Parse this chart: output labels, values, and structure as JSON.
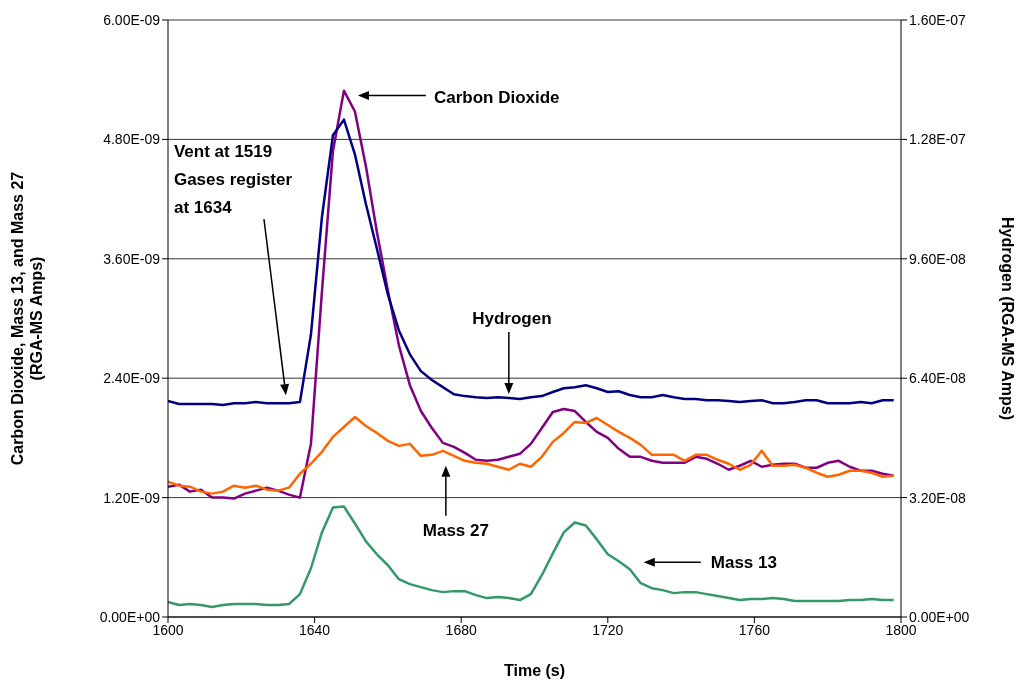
{
  "chart_data": {
    "type": "line",
    "xlabel": "Time (s)",
    "ylabel": "Carbon Dioxide, Mass 13, and Mass 27 (RGA-MS Amps)",
    "y2label": "Hydrogen (RGA-MS Amps)",
    "x": [
      1600,
      1603,
      1606,
      1609,
      1612,
      1615,
      1618,
      1621,
      1624,
      1627,
      1630,
      1633,
      1636,
      1639,
      1642,
      1645,
      1648,
      1651,
      1654,
      1657,
      1660,
      1663,
      1666,
      1669,
      1672,
      1675,
      1678,
      1681,
      1684,
      1687,
      1690,
      1693,
      1696,
      1699,
      1702,
      1705,
      1708,
      1711,
      1714,
      1717,
      1720,
      1723,
      1726,
      1729,
      1732,
      1735,
      1738,
      1741,
      1744,
      1747,
      1750,
      1753,
      1756,
      1759,
      1762,
      1765,
      1768,
      1771,
      1774,
      1777,
      1780,
      1783,
      1786,
      1789,
      1792,
      1795,
      1798
    ],
    "series": [
      {
        "color": "#800080",
        "values": [
          1.31e-09,
          1.33e-09,
          1.26e-09,
          1.28e-09,
          1.2e-09,
          1.2e-09,
          1.19e-09,
          1.24e-09,
          1.27e-09,
          1.3e-09,
          1.27e-09,
          1.23e-09,
          1.2e-09,
          1.74e-09,
          3.27e-09,
          4.68e-09,
          5.29e-09,
          5.08e-09,
          4.53e-09,
          3.87e-09,
          3.28e-09,
          2.73e-09,
          2.33e-09,
          2.07e-09,
          1.9e-09,
          1.75e-09,
          1.71e-09,
          1.65e-09,
          1.58e-09,
          1.57e-09,
          1.58e-09,
          1.61e-09,
          1.64e-09,
          1.74e-09,
          1.9e-09,
          2.06e-09,
          2.09e-09,
          2.07e-09,
          1.96e-09,
          1.86e-09,
          1.8e-09,
          1.69e-09,
          1.61e-09,
          1.61e-09,
          1.57e-09,
          1.55e-09,
          1.55e-09,
          1.55e-09,
          1.61e-09,
          1.59e-09,
          1.54e-09,
          1.48e-09,
          1.52e-09,
          1.57e-09,
          1.51e-09,
          1.53e-09,
          1.54e-09,
          1.54e-09,
          1.5e-09,
          1.5e-09,
          1.55e-09,
          1.57e-09,
          1.51e-09,
          1.47e-09,
          1.47e-09,
          1.44e-09,
          1.42e-09
        ]
      },
      {
        "color": "#ff6600",
        "values": [
          1.36e-09,
          1.32e-09,
          1.31e-09,
          1.26e-09,
          1.24e-09,
          1.26e-09,
          1.32e-09,
          1.3e-09,
          1.32e-09,
          1.28e-09,
          1.27e-09,
          1.3e-09,
          1.44e-09,
          1.54e-09,
          1.66e-09,
          1.81e-09,
          1.91e-09,
          2.01e-09,
          1.92e-09,
          1.85e-09,
          1.77e-09,
          1.72e-09,
          1.74e-09,
          1.62e-09,
          1.63e-09,
          1.67e-09,
          1.62e-09,
          1.57e-09,
          1.55e-09,
          1.54e-09,
          1.51e-09,
          1.48e-09,
          1.54e-09,
          1.51e-09,
          1.61e-09,
          1.76e-09,
          1.85e-09,
          1.96e-09,
          1.95e-09,
          2e-09,
          1.93e-09,
          1.86e-09,
          1.8e-09,
          1.73e-09,
          1.63e-09,
          1.63e-09,
          1.63e-09,
          1.57e-09,
          1.63e-09,
          1.63e-09,
          1.58e-09,
          1.54e-09,
          1.48e-09,
          1.53e-09,
          1.67e-09,
          1.52e-09,
          1.52e-09,
          1.53e-09,
          1.5e-09,
          1.45e-09,
          1.41e-09,
          1.43e-09,
          1.47e-09,
          1.47e-09,
          1.45e-09,
          1.41e-09,
          1.42e-09
        ]
      },
      {
        "color": "#339966",
        "values": [
          1.5e-10,
          1.2e-10,
          1.3e-10,
          1.2e-10,
          1e-10,
          1.2e-10,
          1.3e-10,
          1.3e-10,
          1.3e-10,
          1.2e-10,
          1.2e-10,
          1.3e-10,
          2.3e-10,
          4.9e-10,
          8.5e-10,
          1.1e-09,
          1.11e-09,
          9.4e-10,
          7.6e-10,
          6.3e-10,
          5.2e-10,
          3.8e-10,
          3.3e-10,
          3e-10,
          2.7e-10,
          2.5e-10,
          2.6e-10,
          2.6e-10,
          2.2e-10,
          1.9e-10,
          2e-10,
          1.9e-10,
          1.7e-10,
          2.3e-10,
          4.2e-10,
          6.4e-10,
          8.5e-10,
          9.5e-10,
          9.2e-10,
          7.8e-10,
          6.3e-10,
          5.6e-10,
          4.8e-10,
          3.4e-10,
          2.9e-10,
          2.7e-10,
          2.4e-10,
          2.5e-10,
          2.5e-10,
          2.3e-10,
          2.1e-10,
          1.9e-10,
          1.7e-10,
          1.8e-10,
          1.8e-10,
          1.9e-10,
          1.8e-10,
          1.6e-10,
          1.6e-10,
          1.6e-10,
          1.6e-10,
          1.6e-10,
          1.7e-10,
          1.7e-10,
          1.8e-10,
          1.7e-10,
          1.7e-10
        ]
      },
      {
        "color": "#000080",
        "axis": "y2",
        "values": [
          5.79e-08,
          5.71e-08,
          5.71e-08,
          5.71e-08,
          5.71e-08,
          5.68e-08,
          5.73e-08,
          5.73e-08,
          5.76e-08,
          5.73e-08,
          5.73e-08,
          5.73e-08,
          5.76e-08,
          7.57e-08,
          1.072e-07,
          1.291e-07,
          1.333e-07,
          1.24e-07,
          1.107e-07,
          9.87e-08,
          8.64e-08,
          7.68e-08,
          7.04e-08,
          6.59e-08,
          6.35e-08,
          6.16e-08,
          5.97e-08,
          5.92e-08,
          5.89e-08,
          5.87e-08,
          5.89e-08,
          5.87e-08,
          5.84e-08,
          5.89e-08,
          5.92e-08,
          6.03e-08,
          6.13e-08,
          6.16e-08,
          6.21e-08,
          6.13e-08,
          6.03e-08,
          6.05e-08,
          5.95e-08,
          5.89e-08,
          5.89e-08,
          5.95e-08,
          5.89e-08,
          5.84e-08,
          5.84e-08,
          5.81e-08,
          5.81e-08,
          5.79e-08,
          5.76e-08,
          5.79e-08,
          5.81e-08,
          5.73e-08,
          5.73e-08,
          5.76e-08,
          5.81e-08,
          5.81e-08,
          5.73e-08,
          5.73e-08,
          5.73e-08,
          5.76e-08,
          5.73e-08,
          5.81e-08,
          5.81e-08
        ]
      }
    ],
    "xlim": [
      1600,
      1800
    ],
    "xticks": [
      1600,
      1640,
      1680,
      1720,
      1760,
      1800
    ],
    "ylim": [
      0,
      6e-09
    ],
    "yticks": [
      {
        "value": 0,
        "label": "0.00E+00"
      },
      {
        "value": 1.2e-09,
        "label": "1.20E-09"
      },
      {
        "value": 2.4e-09,
        "label": "2.40E-09"
      },
      {
        "value": 3.6e-09,
        "label": "3.60E-09"
      },
      {
        "value": 4.8e-09,
        "label": "4.80E-09"
      },
      {
        "value": 6e-09,
        "label": "6.00E-09"
      }
    ],
    "y2lim": [
      0,
      1.6e-07
    ],
    "y2ticks": [
      {
        "value": 0,
        "label": "0.00E+00"
      },
      {
        "value": 3.2e-08,
        "label": "3.20E-08"
      },
      {
        "value": 6.4e-08,
        "label": "6.40E-08"
      },
      {
        "value": 9.6e-08,
        "label": "9.60E-08"
      },
      {
        "value": 1.28e-07,
        "label": "1.28E-07"
      },
      {
        "value": 1.6e-07,
        "label": "1.60E-07"
      }
    ],
    "grid": "y",
    "annotations": [
      "Carbon Dioxide",
      "Mass 27",
      "Mass 13",
      "Hydrogen",
      "Vent at 1519\nGases register\nat 1634"
    ]
  }
}
